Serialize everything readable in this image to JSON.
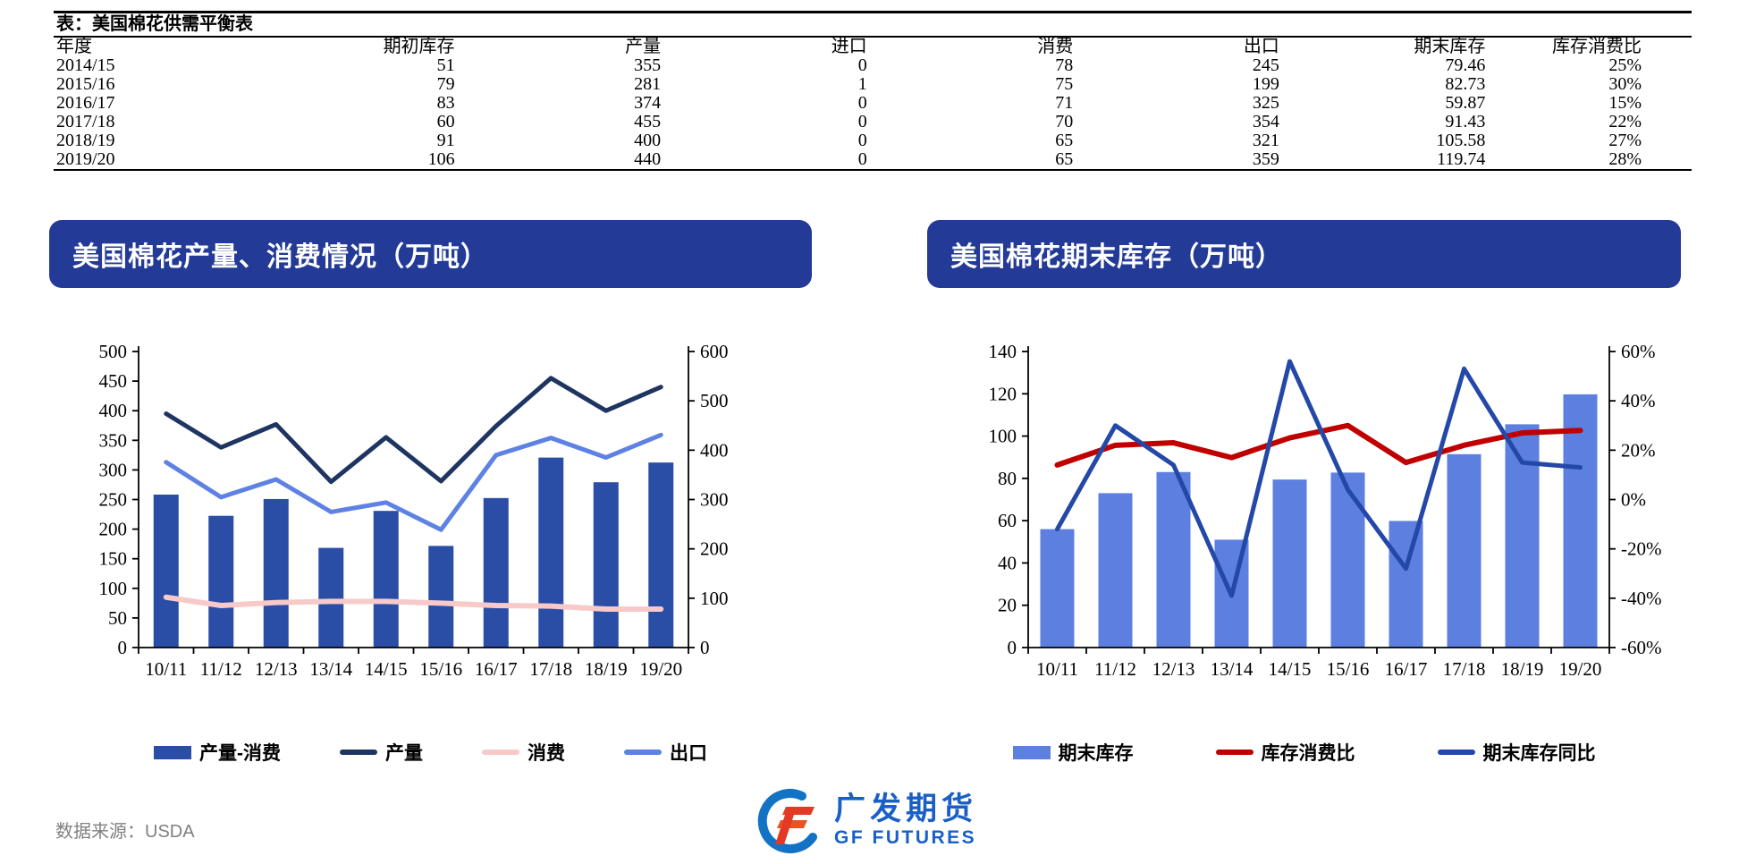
{
  "colors": {
    "banner_bg": "#233A97",
    "banner_text": "#FFFFFF",
    "axis": "#000000",
    "source_text": "#808080",
    "logo_blue": "#1A5FC5",
    "logo_red": "#E23A24",
    "logo_orange": "#E8541F",
    "logo_circle_blue": "#1272C4"
  },
  "table": {
    "title": "表：美国棉花供需平衡表",
    "columns": [
      "年度",
      "期初库存",
      "产量",
      "进口",
      "消费",
      "出口",
      "期末库存",
      "库存消费比"
    ],
    "rows": [
      [
        "2014/15",
        "51",
        "355",
        "0",
        "78",
        "245",
        "79.46",
        "25%"
      ],
      [
        "2015/16",
        "79",
        "281",
        "1",
        "75",
        "199",
        "82.73",
        "30%"
      ],
      [
        "2016/17",
        "83",
        "374",
        "0",
        "71",
        "325",
        "59.87",
        "15%"
      ],
      [
        "2017/18",
        "60",
        "455",
        "0",
        "70",
        "354",
        "91.43",
        "22%"
      ],
      [
        "2018/19",
        "91",
        "400",
        "0",
        "65",
        "321",
        "105.58",
        "27%"
      ],
      [
        "2019/20",
        "106",
        "440",
        "0",
        "65",
        "359",
        "119.74",
        "28%"
      ]
    ]
  },
  "chart_data": [
    {
      "type": "bar",
      "title": "美国棉花产量、消费情况（万吨）",
      "categories": [
        "10/11",
        "11/12",
        "12/13",
        "13/14",
        "14/15",
        "15/16",
        "16/17",
        "17/18",
        "18/19",
        "19/20"
      ],
      "left_axis": {
        "min": 0,
        "max": 500,
        "step": 50
      },
      "right_axis": {
        "min": 0,
        "max": 600,
        "step": 100
      },
      "grid": false,
      "legend_position": "bottom",
      "series": [
        {
          "name": "产量-消费",
          "type": "bar",
          "axis": "right",
          "color": "#2A4DA6",
          "values": [
            310,
            267,
            301,
            202,
            277,
            206,
            303,
            385,
            335,
            375
          ]
        },
        {
          "name": "产量",
          "type": "line",
          "axis": "left",
          "color": "#1F3561",
          "weight": 5,
          "values": [
            395,
            338,
            377,
            280,
            355,
            281,
            374,
            455,
            400,
            440
          ]
        },
        {
          "name": "消费",
          "type": "line",
          "axis": "left",
          "color": "#F7C9C9",
          "weight": 6,
          "values": [
            85,
            71,
            76,
            78,
            78,
            75,
            71,
            70,
            65,
            65
          ]
        },
        {
          "name": "出口",
          "type": "line",
          "axis": "left",
          "color": "#5E81E4",
          "weight": 5,
          "values": [
            313,
            254,
            284,
            229,
            245,
            199,
            325,
            354,
            321,
            359
          ]
        }
      ]
    },
    {
      "type": "bar",
      "title": "美国棉花期末库存（万吨）",
      "categories": [
        "10/11",
        "11/12",
        "12/13",
        "13/14",
        "14/15",
        "15/16",
        "16/17",
        "17/18",
        "18/19",
        "19/20"
      ],
      "left_axis": {
        "min": 0,
        "max": 140,
        "step": 20
      },
      "right_axis": {
        "min": -60,
        "max": 60,
        "step": 20,
        "format": "percent"
      },
      "grid": false,
      "legend_position": "bottom",
      "series": [
        {
          "name": "期末库存",
          "type": "bar",
          "axis": "left",
          "color": "#5C7FE0",
          "values": [
            56,
            73,
            83,
            51,
            79.46,
            82.73,
            59.87,
            91.43,
            105.58,
            119.74
          ]
        },
        {
          "name": "库存消费比",
          "type": "line",
          "axis": "right",
          "color": "#C00000",
          "weight": 6,
          "values": [
            14,
            22,
            23,
            17,
            25,
            30,
            15,
            22,
            27,
            28
          ]
        },
        {
          "name": "期末库存同比",
          "type": "line",
          "axis": "right",
          "color": "#2448A8",
          "weight": 5,
          "values": [
            -12,
            30,
            14,
            -39,
            56,
            4,
            -28,
            53,
            15,
            13
          ]
        }
      ]
    }
  ],
  "footer": {
    "source": "数据来源：USDA"
  },
  "logo": {
    "name_cn": "广发期货",
    "name_en": "GF FUTURES"
  }
}
